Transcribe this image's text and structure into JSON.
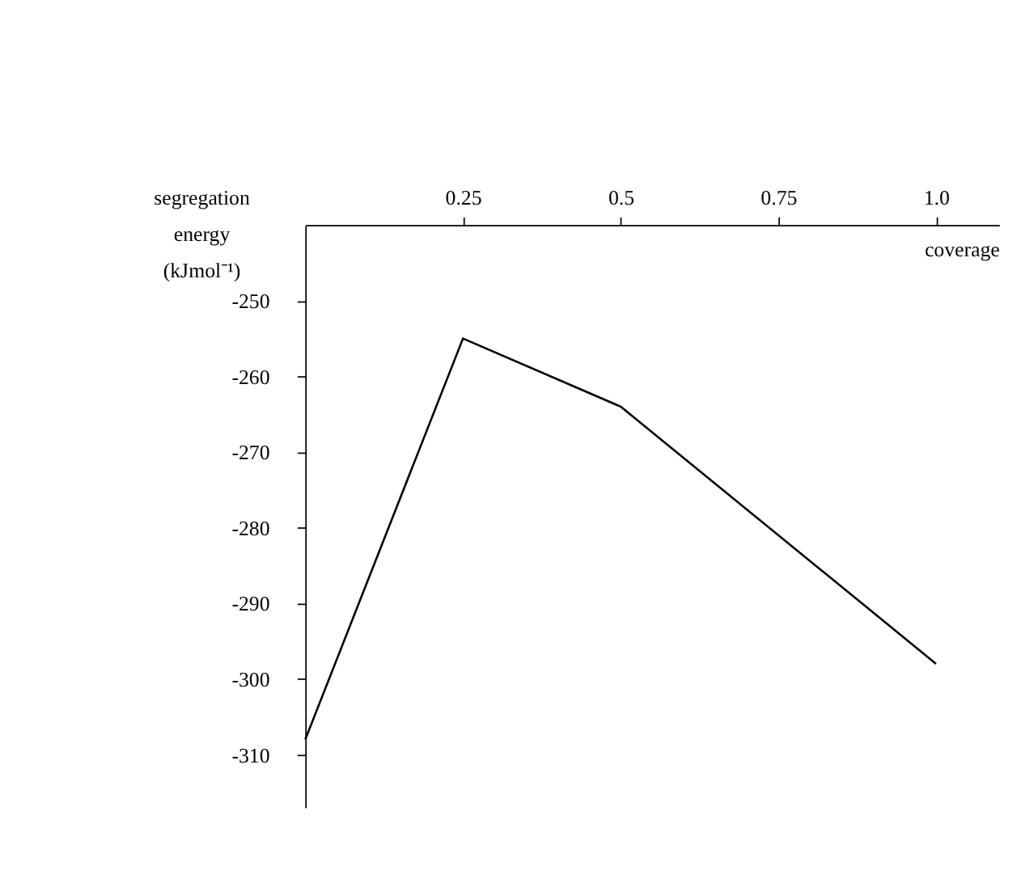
{
  "chart_data": {
    "type": "line",
    "xlabel": "coverage",
    "ylabel": "segregation energy (kJmol⁻¹)",
    "x": [
      0,
      0.25,
      0.5,
      1.0
    ],
    "series": [
      {
        "color": "#000000",
        "values": [
          -308,
          -255,
          -264,
          -298
        ]
      }
    ],
    "xlim": [
      0,
      1.1
    ],
    "xticks": [
      0.25,
      0.5,
      0.75,
      {
        "value": 1.0,
        "label": "1.0"
      }
    ],
    "ylim": [
      -317,
      -240
    ],
    "yticks": [
      -310,
      -300,
      -290,
      -280,
      -270,
      -260,
      -250
    ],
    "grid": false,
    "marker": "none",
    "line_style": "solid"
  }
}
